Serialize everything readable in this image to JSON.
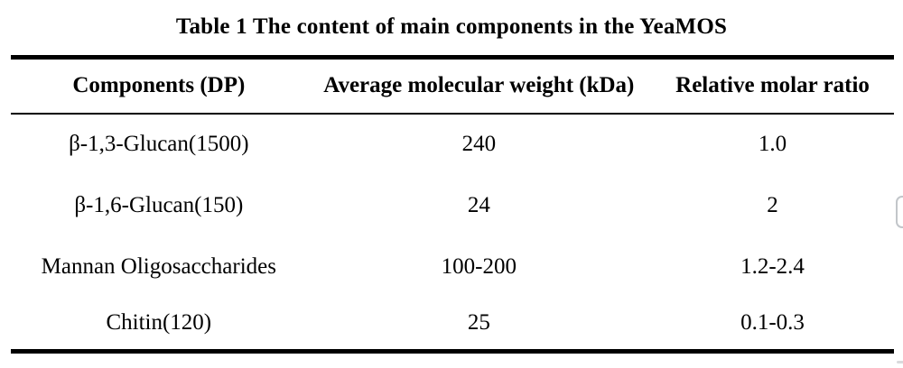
{
  "title": "Table 1 The content of main components in the YeaMOS",
  "table": {
    "columns": [
      "Components (DP)",
      "Average molecular weight (kDa)",
      "Relative molar ratio"
    ],
    "rows": [
      [
        "β-1,3-Glucan(1500)",
        "240",
        "1.0"
      ],
      [
        "β-1,6-Glucan(150)",
        "24",
        "2"
      ],
      [
        "Mannan Oligosaccharides",
        "100-200",
        "1.2-2.4"
      ],
      [
        "Chitin(120)",
        "25",
        "0.1-0.3"
      ]
    ]
  },
  "colors": {
    "text": "#000000",
    "rule": "#000000",
    "background": "#ffffff",
    "artifact_border": "#c2c6ca"
  }
}
